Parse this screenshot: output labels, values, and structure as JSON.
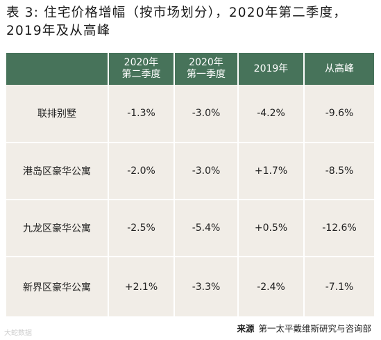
{
  "title": "表 3: 住宅价格增幅（按市场划分），2020年第二季度，2019年及从高峰",
  "table": {
    "headers": [
      "2020年\n第二季度",
      "2020年\n第一季度",
      "2019年",
      "从高峰"
    ],
    "rows": [
      {
        "label": "联排别墅",
        "values": [
          "-1.3%",
          "-3.0%",
          "-4.2%",
          "-9.6%"
        ]
      },
      {
        "label": "港岛区豪华公寓",
        "values": [
          "-2.0%",
          "-3.0%",
          "+1.7%",
          "-8.5%"
        ]
      },
      {
        "label": "九龙区豪华公寓",
        "values": [
          "-2.5%",
          "-5.4%",
          "+0.5%",
          "-12.6%"
        ]
      },
      {
        "label": "新界区豪华公寓",
        "values": [
          "+2.1%",
          "-3.3%",
          "-2.4%",
          "-7.1%"
        ]
      }
    ]
  },
  "source": {
    "label": "来源",
    "text": "第一太平戴维斯研究与咨询部"
  },
  "watermark": "大蛇数据"
}
